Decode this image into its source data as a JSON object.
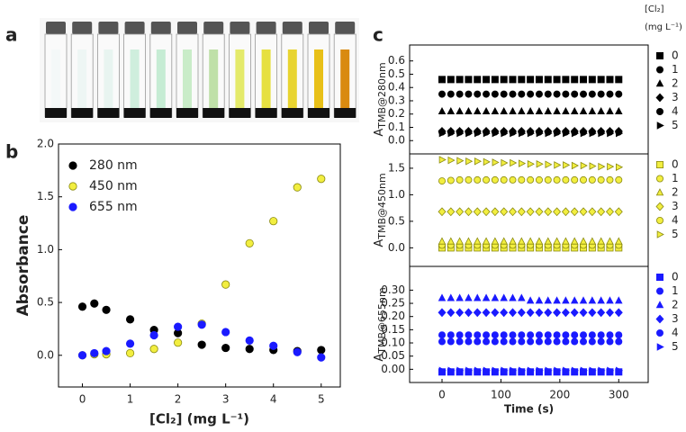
{
  "panel_labels": [
    "a",
    "b",
    "c"
  ],
  "chart_data": [
    {
      "type": "scatter",
      "ylabel": "Absorbance",
      "xlabel": "[Cl₂] (mg L⁻¹)",
      "x": [
        0,
        0.25,
        0.5,
        1,
        1.5,
        2,
        2.5,
        3,
        3.5,
        4,
        4.5,
        5
      ],
      "xlim": [
        -0.5,
        5.4
      ],
      "xticks": [
        0,
        1,
        2,
        3,
        4,
        5
      ],
      "ylim": [
        -0.3,
        2.0
      ],
      "yticks": [
        {
          "value": 0,
          "label": "0.0"
        },
        {
          "value": 0.5,
          "label": "0.5"
        },
        {
          "value": 1,
          "label": "1.0"
        },
        {
          "value": 1.5,
          "label": "1.5"
        },
        {
          "value": 2,
          "label": "2.0"
        }
      ],
      "legend": "upper left",
      "series": [
        {
          "name": "280 nm",
          "color": "#000000",
          "marker": "circle",
          "values": [
            0.46,
            0.49,
            0.43,
            0.34,
            0.24,
            0.21,
            0.1,
            0.07,
            0.06,
            0.05,
            0.04,
            0.05
          ]
        },
        {
          "name": "450 nm",
          "color": "#f2ee40",
          "marker": "circle",
          "values": [
            0.0,
            0.01,
            0.01,
            0.02,
            0.06,
            0.12,
            0.3,
            0.67,
            1.06,
            1.27,
            1.59,
            1.67
          ]
        },
        {
          "name": "655 nm",
          "color": "#1a1aff",
          "marker": "circle",
          "values": [
            0.0,
            0.02,
            0.04,
            0.11,
            0.19,
            0.27,
            0.29,
            0.22,
            0.14,
            0.09,
            0.03,
            -0.02
          ]
        }
      ]
    },
    {
      "type": "scatter",
      "ylabel": {
        "main": "A",
        "sub": "TMB@280nm"
      },
      "legend_title": [
        "[Cl₂]",
        "(mg L⁻¹)"
      ],
      "legend": "right",
      "x": [
        0,
        15,
        30,
        45,
        60,
        75,
        90,
        105,
        120,
        135,
        150,
        165,
        180,
        195,
        210,
        225,
        240,
        255,
        270,
        285,
        300
      ],
      "xlim": [
        -55,
        350
      ],
      "ylim": [
        -0.1,
        0.72
      ],
      "yticks": [
        {
          "value": 0,
          "label": "0.0"
        },
        0.1,
        0.2,
        0.3,
        0.4,
        0.5,
        0.6
      ],
      "series": [
        {
          "name": "0",
          "color": "#000000",
          "marker": "square",
          "values": [
            0.46,
            0.46,
            0.46,
            0.46,
            0.46,
            0.46,
            0.46,
            0.46,
            0.46,
            0.46,
            0.46,
            0.46,
            0.46,
            0.46,
            0.46,
            0.46,
            0.46,
            0.46,
            0.46,
            0.46,
            0.46
          ]
        },
        {
          "name": "1",
          "color": "#000000",
          "marker": "circle",
          "values": [
            0.35,
            0.35,
            0.35,
            0.35,
            0.35,
            0.35,
            0.35,
            0.35,
            0.35,
            0.35,
            0.35,
            0.35,
            0.35,
            0.35,
            0.35,
            0.35,
            0.35,
            0.35,
            0.35,
            0.35,
            0.35
          ]
        },
        {
          "name": "2",
          "color": "#000000",
          "marker": "triangle",
          "values": [
            0.22,
            0.22,
            0.22,
            0.22,
            0.22,
            0.22,
            0.22,
            0.22,
            0.22,
            0.22,
            0.22,
            0.22,
            0.22,
            0.22,
            0.22,
            0.22,
            0.22,
            0.22,
            0.22,
            0.22,
            0.22
          ]
        },
        {
          "name": "3",
          "color": "#000000",
          "marker": "diamond",
          "values": [
            0.07,
            0.07,
            0.07,
            0.07,
            0.07,
            0.07,
            0.07,
            0.07,
            0.07,
            0.07,
            0.07,
            0.07,
            0.07,
            0.07,
            0.07,
            0.07,
            0.07,
            0.07,
            0.07,
            0.07,
            0.07
          ]
        },
        {
          "name": "4",
          "color": "#000000",
          "marker": "circle",
          "values": [
            0.065,
            0.065,
            0.065,
            0.065,
            0.065,
            0.065,
            0.065,
            0.065,
            0.065,
            0.065,
            0.065,
            0.065,
            0.065,
            0.065,
            0.065,
            0.065,
            0.065,
            0.065,
            0.065,
            0.065,
            0.065
          ]
        },
        {
          "name": "5",
          "color": "#000000",
          "marker": "right-triangle",
          "values": [
            0.055,
            0.055,
            0.055,
            0.055,
            0.055,
            0.055,
            0.055,
            0.055,
            0.055,
            0.055,
            0.055,
            0.055,
            0.055,
            0.055,
            0.055,
            0.055,
            0.055,
            0.055,
            0.055,
            0.055,
            0.055
          ]
        }
      ]
    },
    {
      "type": "scatter",
      "ylabel": {
        "main": "A",
        "sub": "TMB@450nm"
      },
      "legend": "right",
      "x": [
        0,
        15,
        30,
        45,
        60,
        75,
        90,
        105,
        120,
        135,
        150,
        165,
        180,
        195,
        210,
        225,
        240,
        255,
        270,
        285,
        300
      ],
      "xlim": [
        -55,
        350
      ],
      "ylim": [
        -0.35,
        1.77
      ],
      "yticks": [
        {
          "value": 0,
          "label": "0.0"
        },
        0.5,
        {
          "value": 1,
          "label": "1.0"
        },
        1.5
      ],
      "series": [
        {
          "name": "0",
          "color": "#f2ee40",
          "marker": "square",
          "values": [
            0,
            0,
            0,
            0,
            0,
            0,
            0,
            0,
            0,
            0,
            0,
            0,
            0,
            0,
            0,
            0,
            0,
            0,
            0,
            0,
            0
          ]
        },
        {
          "name": "1",
          "color": "#f2ee40",
          "marker": "circle",
          "values": [
            0.05,
            0.05,
            0.05,
            0.05,
            0.05,
            0.05,
            0.05,
            0.05,
            0.05,
            0.05,
            0.05,
            0.05,
            0.05,
            0.05,
            0.05,
            0.05,
            0.05,
            0.05,
            0.05,
            0.05,
            0.05
          ]
        },
        {
          "name": "2",
          "color": "#f2ee40",
          "marker": "triangle",
          "values": [
            0.12,
            0.12,
            0.12,
            0.12,
            0.12,
            0.12,
            0.12,
            0.12,
            0.12,
            0.12,
            0.12,
            0.12,
            0.12,
            0.12,
            0.12,
            0.12,
            0.12,
            0.12,
            0.12,
            0.12,
            0.12
          ]
        },
        {
          "name": "3",
          "color": "#f2ee40",
          "marker": "diamond",
          "values": [
            0.68,
            0.68,
            0.68,
            0.68,
            0.68,
            0.68,
            0.68,
            0.68,
            0.68,
            0.68,
            0.68,
            0.68,
            0.68,
            0.68,
            0.68,
            0.68,
            0.68,
            0.68,
            0.68,
            0.68,
            0.68
          ]
        },
        {
          "name": "4",
          "color": "#f2ee40",
          "marker": "circle",
          "values": [
            1.26,
            1.27,
            1.28,
            1.28,
            1.28,
            1.28,
            1.28,
            1.28,
            1.28,
            1.28,
            1.28,
            1.28,
            1.28,
            1.28,
            1.28,
            1.28,
            1.28,
            1.28,
            1.28,
            1.28,
            1.28
          ]
        },
        {
          "name": "5",
          "color": "#f2ee40",
          "marker": "right-triangle",
          "values": [
            1.66,
            1.65,
            1.64,
            1.63,
            1.63,
            1.62,
            1.61,
            1.6,
            1.6,
            1.59,
            1.58,
            1.58,
            1.57,
            1.56,
            1.56,
            1.55,
            1.55,
            1.54,
            1.53,
            1.53,
            1.52
          ]
        }
      ]
    },
    {
      "type": "scatter",
      "ylabel": {
        "main": "A",
        "sub": "TMB@655nm"
      },
      "xlabel": "Time (s)",
      "legend": "right",
      "x": [
        0,
        15,
        30,
        45,
        60,
        75,
        90,
        105,
        120,
        135,
        150,
        165,
        180,
        195,
        210,
        225,
        240,
        255,
        270,
        285,
        300
      ],
      "xlim": [
        -55,
        350
      ],
      "xticks": [
        0,
        100,
        200,
        300
      ],
      "ylim": [
        -0.05,
        0.39
      ],
      "yticks": [
        {
          "value": 0,
          "label": "0.00"
        },
        0.05,
        {
          "value": 0.1,
          "label": "0.10"
        },
        0.15,
        {
          "value": 0.2,
          "label": "0.20"
        },
        0.25,
        {
          "value": 0.3,
          "label": "0.30"
        }
      ],
      "series": [
        {
          "name": "0",
          "color": "#1a1aff",
          "marker": "square",
          "values": [
            -0.01,
            -0.01,
            -0.01,
            -0.01,
            -0.01,
            -0.01,
            -0.01,
            -0.01,
            -0.01,
            -0.01,
            -0.01,
            -0.01,
            -0.01,
            -0.01,
            -0.01,
            -0.01,
            -0.01,
            -0.01,
            -0.01,
            -0.01,
            -0.01
          ]
        },
        {
          "name": "1",
          "color": "#1a1aff",
          "marker": "circle",
          "values": [
            0.13,
            0.13,
            0.13,
            0.13,
            0.13,
            0.13,
            0.13,
            0.13,
            0.13,
            0.13,
            0.13,
            0.13,
            0.13,
            0.13,
            0.13,
            0.13,
            0.13,
            0.13,
            0.13,
            0.13,
            0.13
          ]
        },
        {
          "name": "2",
          "color": "#1a1aff",
          "marker": "triangle",
          "values": [
            0.27,
            0.27,
            0.27,
            0.27,
            0.27,
            0.27,
            0.27,
            0.27,
            0.27,
            0.27,
            0.26,
            0.26,
            0.26,
            0.26,
            0.26,
            0.26,
            0.26,
            0.26,
            0.26,
            0.26,
            0.26
          ]
        },
        {
          "name": "3",
          "color": "#1a1aff",
          "marker": "diamond",
          "values": [
            0.215,
            0.215,
            0.215,
            0.215,
            0.215,
            0.215,
            0.215,
            0.215,
            0.215,
            0.215,
            0.215,
            0.215,
            0.215,
            0.215,
            0.215,
            0.215,
            0.215,
            0.215,
            0.215,
            0.215,
            0.215
          ]
        },
        {
          "name": "4",
          "color": "#1a1aff",
          "marker": "circle",
          "values": [
            0.105,
            0.105,
            0.105,
            0.105,
            0.105,
            0.105,
            0.105,
            0.105,
            0.105,
            0.105,
            0.105,
            0.105,
            0.105,
            0.105,
            0.105,
            0.105,
            0.105,
            0.105,
            0.105,
            0.105,
            0.105
          ]
        },
        {
          "name": "5",
          "color": "#1a1aff",
          "marker": "right-triangle",
          "values": [
            -0.005,
            -0.005,
            -0.005,
            -0.005,
            -0.005,
            -0.005,
            -0.005,
            -0.005,
            -0.005,
            -0.005,
            -0.005,
            -0.005,
            -0.005,
            -0.005,
            -0.005,
            -0.005,
            -0.005,
            -0.005,
            -0.005,
            -0.005,
            -0.005
          ]
        }
      ]
    }
  ]
}
